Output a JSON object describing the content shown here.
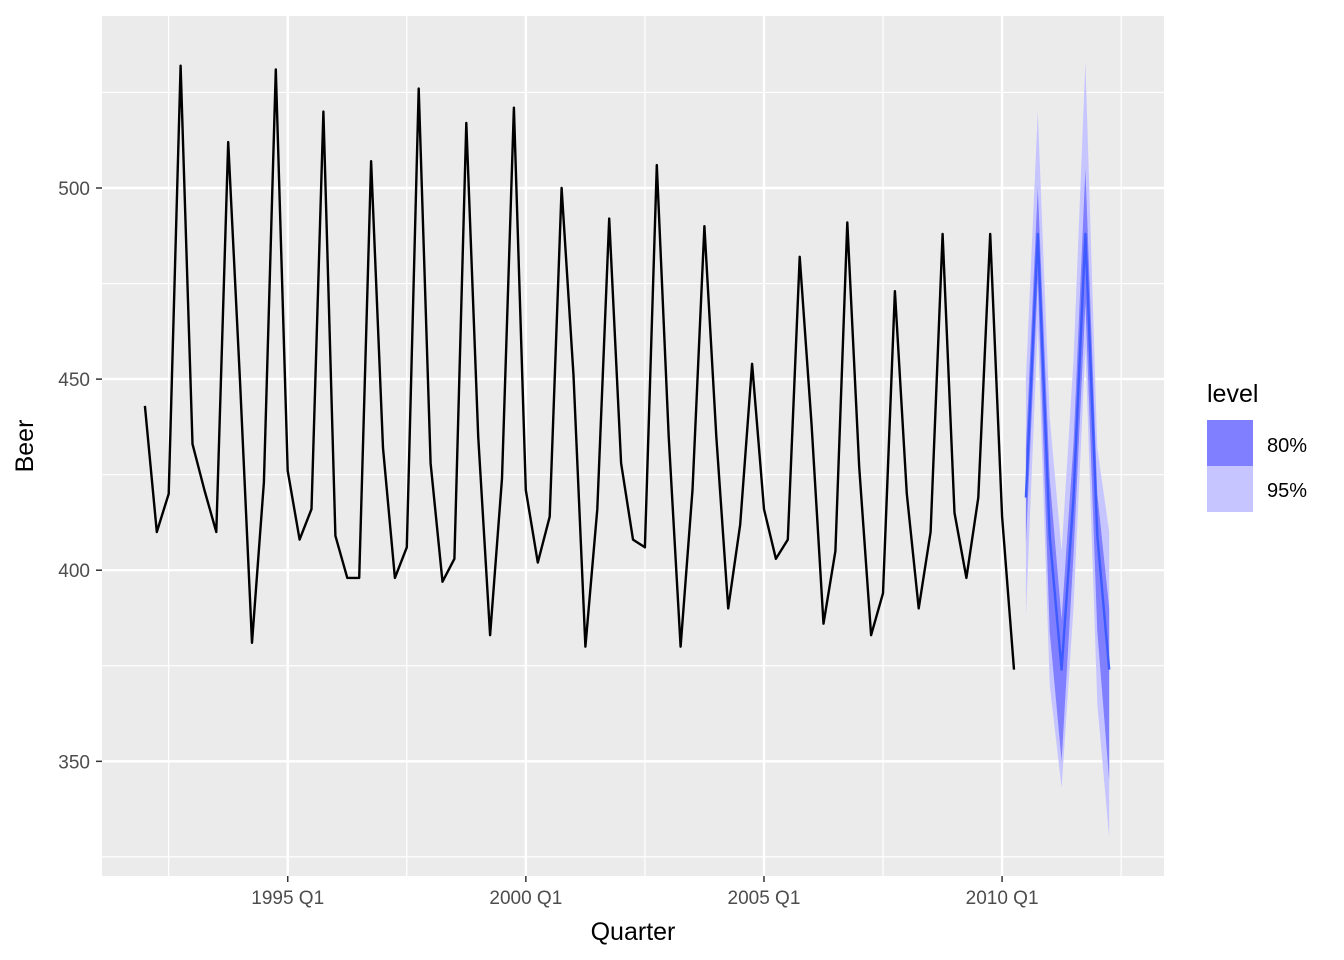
{
  "chart_data": {
    "type": "line",
    "xlabel": "Quarter",
    "ylabel": "Beer",
    "x_ticks": [
      {
        "label": "1995 Q1",
        "t": 1995.0
      },
      {
        "label": "2000 Q1",
        "t": 2000.0
      },
      {
        "label": "2005 Q1",
        "t": 2005.0
      },
      {
        "label": "2010 Q1",
        "t": 2010.0
      }
    ],
    "y_ticks": [
      350,
      400,
      450,
      500
    ],
    "xlim": [
      1991.1,
      2013.4
    ],
    "ylim": [
      320,
      545
    ],
    "grid": true,
    "legend": {
      "title": "level",
      "position": "right",
      "items": [
        {
          "label": "80%",
          "color": "#7f7fff"
        },
        {
          "label": "95%",
          "color": "#c7c5ff"
        }
      ]
    },
    "series": [
      {
        "start": "1992 Q1",
        "values": [
          443,
          410,
          420,
          532,
          433,
          421,
          410,
          512,
          449,
          381,
          423,
          531,
          426,
          408,
          416,
          520,
          409,
          398,
          398,
          507,
          432,
          398,
          406,
          526,
          428,
          397,
          403,
          517,
          435,
          383,
          424,
          521,
          421,
          402,
          414,
          500,
          451,
          380,
          416,
          492,
          428,
          408,
          406,
          506,
          435,
          380,
          421,
          490,
          435,
          390,
          412,
          454,
          416,
          403,
          408,
          482,
          438,
          386,
          405,
          491,
          427,
          383,
          394,
          473,
          420,
          390,
          410,
          488,
          415,
          398,
          419,
          488,
          414,
          374
        ],
        "color": "#000000"
      }
    ],
    "forecast": {
      "start": "2010 Q3",
      "mean": [
        419,
        488,
        409,
        374,
        419,
        488,
        409,
        374
      ],
      "lo80": [
        407,
        476,
        384,
        350,
        404,
        470,
        384,
        345
      ],
      "hi80": [
        432,
        500,
        424,
        387,
        433,
        505,
        420,
        390
      ],
      "lo95": [
        388,
        464,
        370,
        343,
        390,
        458,
        365,
        330
      ],
      "hi95": [
        450,
        520,
        440,
        405,
        455,
        533,
        432,
        410
      ],
      "color": "#3d5bff"
    }
  }
}
